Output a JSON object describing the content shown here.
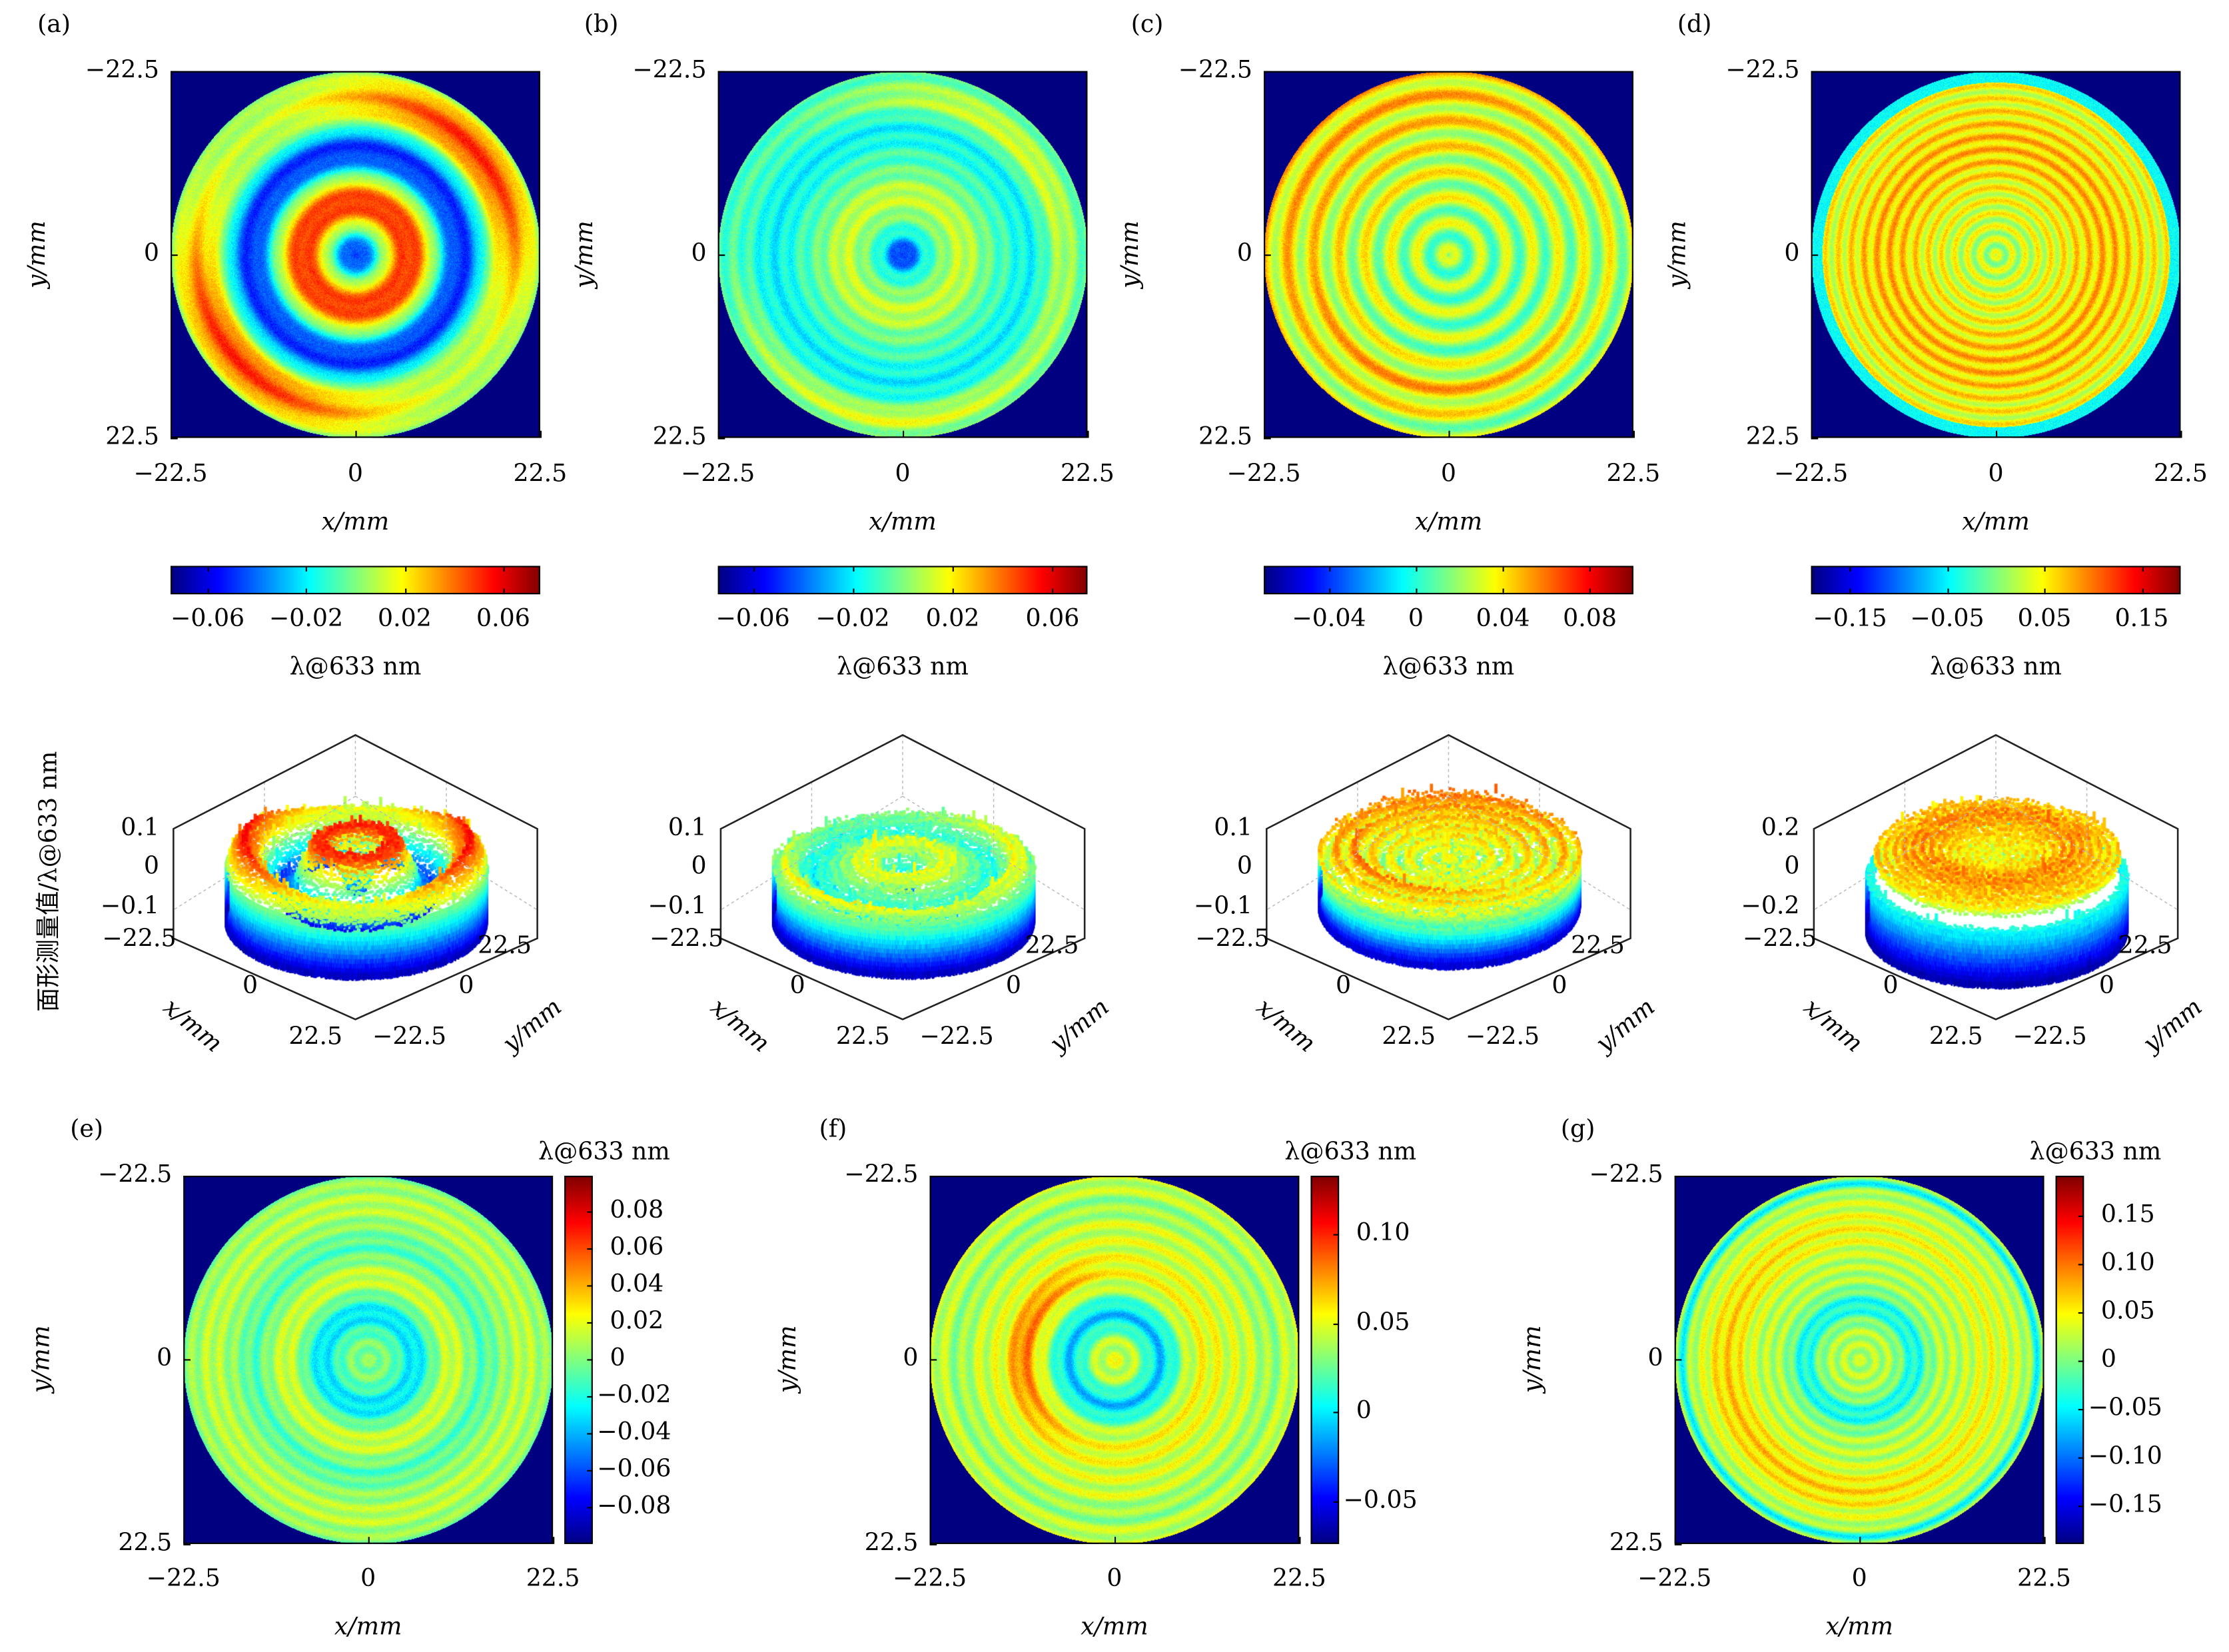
{
  "chart_data": {
    "type": "heatmap",
    "colormap": "jet",
    "background_color": "#000080",
    "top_row": [
      {
        "label": "(a)",
        "yticks": [
          "−22.5",
          "0",
          "22.5"
        ],
        "xticks": [
          "−22.5",
          "0",
          "22.5"
        ],
        "xlabel": "x/mm",
        "ylabel": "y/mm",
        "colorbar": {
          "orientation": "horizontal",
          "range": [
            -0.075,
            0.075
          ],
          "ticks": [
            "−0.06",
            "−0.02",
            "0.02",
            "0.06"
          ],
          "label": "λ@633 nm"
        }
      },
      {
        "label": "(b)",
        "yticks": [
          "−22.5",
          "0",
          "22.5"
        ],
        "xticks": [
          "−22.5",
          "0",
          "22.5"
        ],
        "xlabel": "x/mm",
        "ylabel": "y/mm",
        "colorbar": {
          "orientation": "horizontal",
          "range": [
            -0.074,
            0.074
          ],
          "ticks": [
            "−0.06",
            "−0.02",
            "0.02",
            "0.06"
          ],
          "label": "λ@633 nm"
        }
      },
      {
        "label": "(c)",
        "yticks": [
          "−22.5",
          "0",
          "22.5"
        ],
        "xticks": [
          "−22.5",
          "0",
          "22.5"
        ],
        "xlabel": "x/mm",
        "ylabel": "y/mm",
        "colorbar": {
          "orientation": "horizontal",
          "range": [
            -0.07,
            0.1
          ],
          "ticks": [
            "−0.04",
            "0",
            "0.04",
            "0.08"
          ],
          "label": "λ@633 nm"
        }
      },
      {
        "label": "(d)",
        "yticks": [
          "−22.5",
          "0",
          "22.5"
        ],
        "xticks": [
          "−22.5",
          "0",
          "22.5"
        ],
        "xlabel": "x/mm",
        "ylabel": "y/mm",
        "colorbar": {
          "orientation": "horizontal",
          "range": [
            -0.19,
            0.19
          ],
          "ticks": [
            "−0.15",
            "−0.05",
            "0.05",
            "0.15"
          ],
          "label": "λ@633 nm"
        }
      }
    ],
    "surface_row": {
      "zlabel": "面形测量值/λ@633 nm",
      "panels": [
        {
          "zticks": [
            "0.1",
            "0",
            "−0.1"
          ],
          "x_ticks": [
            "−22.5",
            "0",
            "22.5"
          ],
          "y_ticks": [
            "−22.5",
            "0",
            "22.5"
          ],
          "xlabel": "x/mm",
          "ylabel": "y/mm"
        },
        {
          "zticks": [
            "0.1",
            "0",
            "−0.1"
          ],
          "x_ticks": [
            "−22.5",
            "0",
            "22.5"
          ],
          "y_ticks": [
            "−22.5",
            "0",
            "22.5"
          ],
          "xlabel": "x/mm",
          "ylabel": "y/mm"
        },
        {
          "zticks": [
            "0.1",
            "0",
            "−0.1"
          ],
          "x_ticks": [
            "−22.5",
            "0",
            "22.5"
          ],
          "y_ticks": [
            "−22.5",
            "0",
            "22.5"
          ],
          "xlabel": "x/mm",
          "ylabel": "y/mm"
        },
        {
          "zticks": [
            "0.2",
            "0",
            "−0.2"
          ],
          "x_ticks": [
            "−22.5",
            "0",
            "22.5"
          ],
          "y_ticks": [
            "−22.5",
            "0",
            "22.5"
          ],
          "xlabel": "x/mm",
          "ylabel": "y/mm"
        }
      ]
    },
    "bottom_row": [
      {
        "label": "(e)",
        "yticks": [
          "−22.5",
          "0",
          "22.5"
        ],
        "xticks": [
          "−22.5",
          "0",
          "22.5"
        ],
        "xlabel": "x/mm",
        "ylabel": "y/mm",
        "colorbar": {
          "orientation": "vertical",
          "range": [
            -0.1,
            0.099
          ],
          "ticks": [
            "0.08",
            "0.06",
            "0.04",
            "0.02",
            "0",
            "−0.02",
            "−0.04",
            "−0.06",
            "−0.08"
          ],
          "label": "λ@633 nm"
        }
      },
      {
        "label": "(f)",
        "yticks": [
          "−22.5",
          "0",
          "22.5"
        ],
        "xticks": [
          "−22.5",
          "0",
          "22.5"
        ],
        "xlabel": "x/mm",
        "ylabel": "y/mm",
        "colorbar": {
          "orientation": "vertical",
          "range": [
            -0.074,
            0.133
          ],
          "ticks": [
            "0.10",
            "0.05",
            "0",
            "−0.05"
          ],
          "label": "λ@633 nm"
        }
      },
      {
        "label": "(g)",
        "yticks": [
          "−22.5",
          "0",
          "22.5"
        ],
        "xticks": [
          "−22.5",
          "0",
          "22.5"
        ],
        "xlabel": "x/mm",
        "ylabel": "y/mm",
        "colorbar": {
          "orientation": "vertical",
          "range": [
            -0.19,
            0.191
          ],
          "ticks": [
            "0.15",
            "0.10",
            "0.05",
            "0",
            "−0.05",
            "−0.10",
            "−0.15"
          ],
          "label": "λ@633 nm"
        }
      }
    ]
  }
}
